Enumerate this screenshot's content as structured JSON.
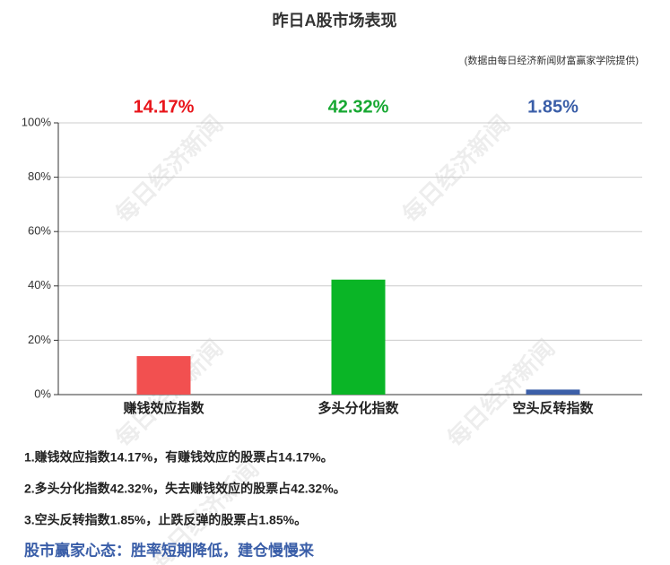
{
  "chart_data": {
    "type": "bar",
    "title": "昨日A股市场表现",
    "subtitle": "(数据由每日经济新闻财富赢家学院提供)",
    "categories": [
      "赚钱效应指数",
      "多头分化指数",
      "空头反转指数"
    ],
    "values": [
      14.17,
      42.32,
      1.85
    ],
    "value_labels": [
      "14.17%",
      "42.32%",
      "1.85%"
    ],
    "colors": [
      "#f25050",
      "#0ab526",
      "#3c5fa8"
    ],
    "value_label_colors": [
      "#e8141a",
      "#17a832",
      "#3a5ea8"
    ],
    "ylim": [
      0,
      100
    ],
    "yticks": [
      {
        "value": 0,
        "label": "0%"
      },
      {
        "value": 20,
        "label": "20%"
      },
      {
        "value": 40,
        "label": "40%"
      },
      {
        "value": 60,
        "label": "60%"
      },
      {
        "value": 80,
        "label": "80%"
      },
      {
        "value": 100,
        "label": "100%"
      }
    ],
    "grid": true,
    "watermark": "每日经济新闻",
    "notes": [
      "1.赚钱效应指数14.17%，有赚钱效应的股票占14.17%。",
      "2.多头分化指数42.32%，失去赚钱效应的股票占42.32%。",
      "3.空头反转指数1.85%，止跌反弹的股票占1.85%。"
    ],
    "conclusion": "股市赢家心态：胜率短期降低，建仓慢慢来"
  }
}
